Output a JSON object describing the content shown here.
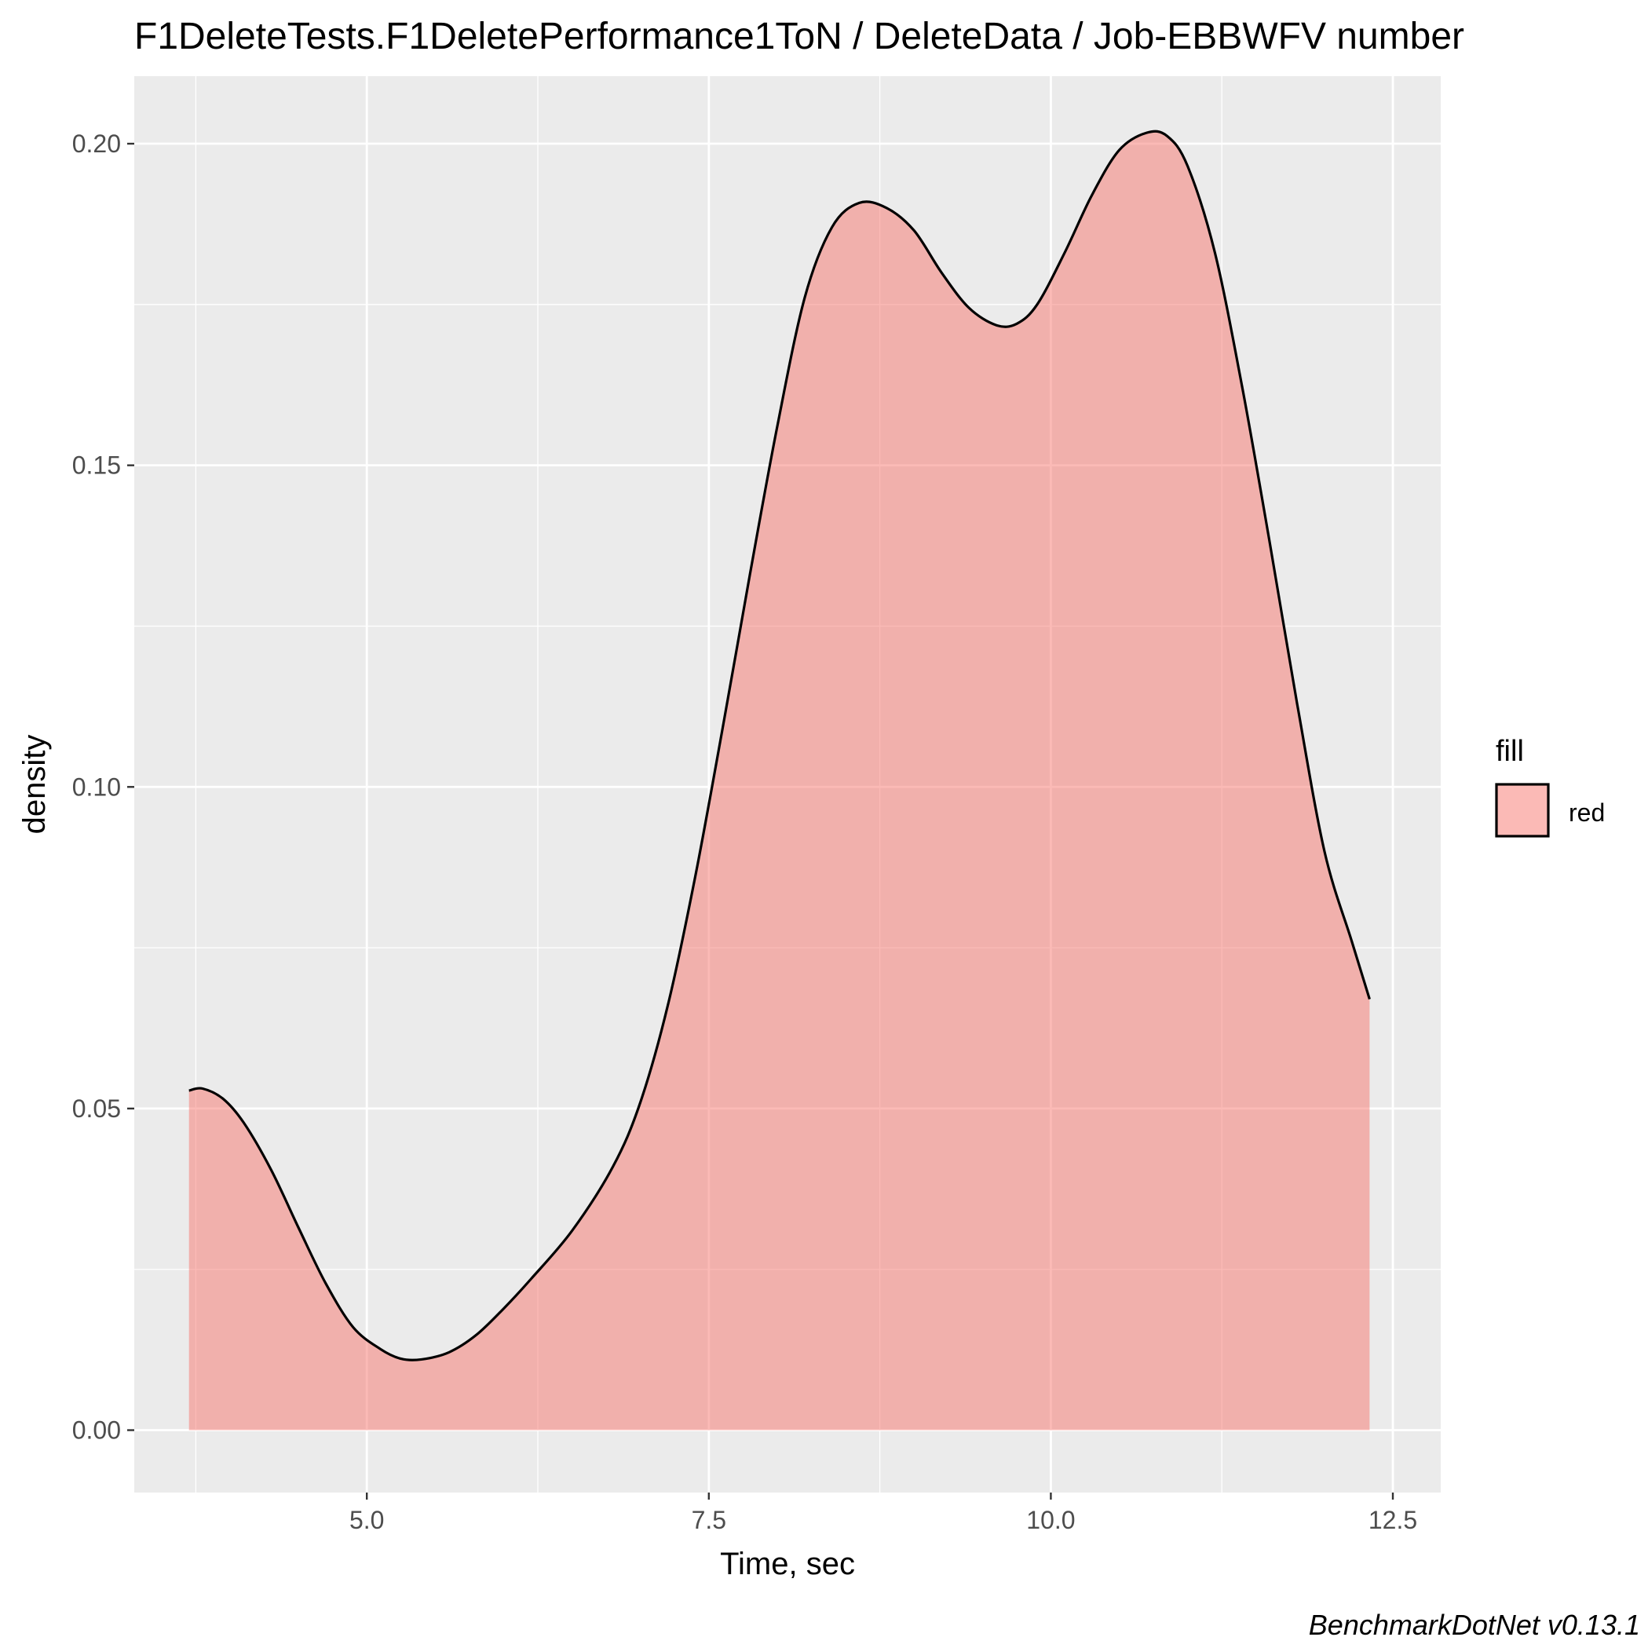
{
  "chart_data": {
    "type": "area",
    "title": "F1DeleteTests.F1DeletePerformance1ToN / DeleteData / Job-EBBWFV number",
    "xlabel": "Time, sec",
    "ylabel": "density",
    "caption": "BenchmarkDotNet v0.13.1",
    "xlim": [
      3.3,
      12.85
    ],
    "ylim": [
      -0.0097,
      0.2105
    ],
    "x_ticks": [
      5.0,
      7.5,
      10.0,
      12.5
    ],
    "x_tick_labels": [
      "5.0",
      "7.5",
      "10.0",
      "12.5"
    ],
    "y_ticks": [
      0.0,
      0.05,
      0.1,
      0.15,
      0.2
    ],
    "y_tick_labels": [
      "0.00",
      "0.05",
      "0.10",
      "0.15",
      "0.20"
    ],
    "grid": true,
    "legend": {
      "title": "fill",
      "entries": [
        "red"
      ],
      "placement": "right"
    },
    "colors": {
      "panel_background": "#ebebeb",
      "grid_line": "#ffffff",
      "fill": "#f8766d",
      "fill_opacity": 0.5,
      "outline": "#000000"
    },
    "series": [
      {
        "name": "red",
        "x": [
          3.7,
          3.8,
          3.95,
          4.1,
          4.3,
          4.5,
          4.7,
          4.9,
          5.1,
          5.25,
          5.4,
          5.6,
          5.8,
          6.0,
          6.2,
          6.5,
          6.8,
          7.0,
          7.2,
          7.4,
          7.6,
          7.8,
          8.0,
          8.2,
          8.4,
          8.6,
          8.8,
          9.0,
          9.2,
          9.4,
          9.6,
          9.75,
          9.9,
          10.1,
          10.3,
          10.5,
          10.7,
          10.85,
          11.0,
          11.2,
          11.4,
          11.6,
          11.8,
          12.0,
          12.2,
          12.33
        ],
        "y": [
          0.0528,
          0.0531,
          0.0515,
          0.0478,
          0.0405,
          0.0315,
          0.0228,
          0.016,
          0.0126,
          0.0111,
          0.011,
          0.0121,
          0.0148,
          0.0189,
          0.0235,
          0.031,
          0.041,
          0.051,
          0.066,
          0.086,
          0.109,
          0.133,
          0.156,
          0.176,
          0.187,
          0.1908,
          0.19,
          0.1865,
          0.18,
          0.1745,
          0.1718,
          0.172,
          0.175,
          0.183,
          0.192,
          0.199,
          0.2017,
          0.2012,
          0.1965,
          0.183,
          0.162,
          0.138,
          0.113,
          0.09,
          0.076,
          0.067
        ]
      }
    ]
  }
}
